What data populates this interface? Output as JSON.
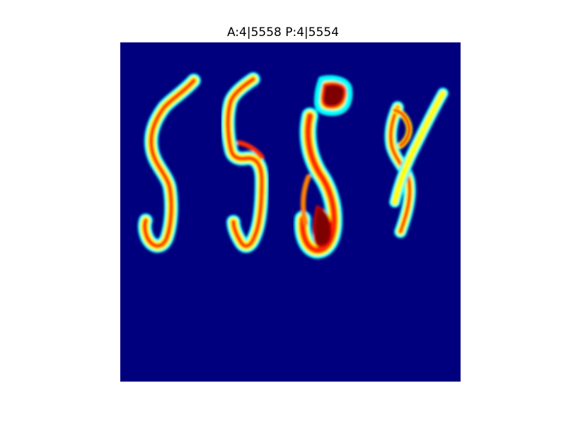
{
  "figure": {
    "title": "A:4|5558 P:4|5554"
  },
  "image": {
    "colormap": "jet",
    "background_color": "#00007f",
    "content": "heatmap-of-handwritten-digits"
  }
}
